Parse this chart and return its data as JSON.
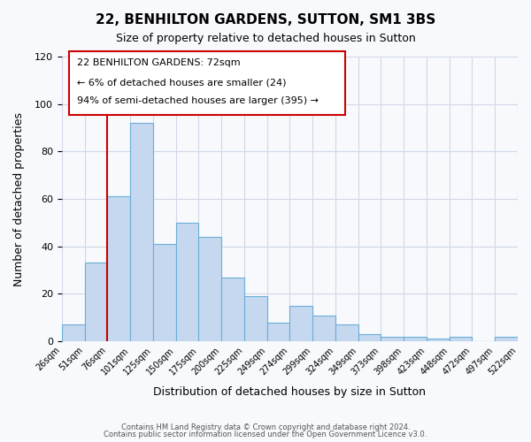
{
  "title": "22, BENHILTON GARDENS, SUTTON, SM1 3BS",
  "subtitle": "Size of property relative to detached houses in Sutton",
  "xlabel": "Distribution of detached houses by size in Sutton",
  "ylabel": "Number of detached properties",
  "bin_labels": [
    "26sqm",
    "51sqm",
    "76sqm",
    "101sqm",
    "125sqm",
    "150sqm",
    "175sqm",
    "200sqm",
    "225sqm",
    "249sqm",
    "274sqm",
    "299sqm",
    "324sqm",
    "349sqm",
    "373sqm",
    "398sqm",
    "423sqm",
    "448sqm",
    "472sqm",
    "497sqm",
    "522sqm"
  ],
  "bar_values": [
    7,
    33,
    61,
    92,
    41,
    50,
    44,
    27,
    19,
    8,
    15,
    11,
    7,
    3,
    2,
    2,
    1,
    2,
    0,
    2
  ],
  "bar_color": "#c5d8f0",
  "bar_edge_color": "#6aaed6",
  "ylim": [
    0,
    120
  ],
  "yticks": [
    0,
    20,
    40,
    60,
    80,
    100,
    120
  ],
  "vline_color": "#cc0000",
  "annotation_title": "22 BENHILTON GARDENS: 72sqm",
  "annotation_line1": "← 6% of detached houses are smaller (24)",
  "annotation_line2": "94% of semi-detached houses are larger (395) →",
  "annotation_box_color": "#cc0000",
  "footer_line1": "Contains HM Land Registry data © Crown copyright and database right 2024.",
  "footer_line2": "Contains public sector information licensed under the Open Government Licence v3.0.",
  "bg_color": "#f7f9fc",
  "grid_color": "#d0d8e8"
}
